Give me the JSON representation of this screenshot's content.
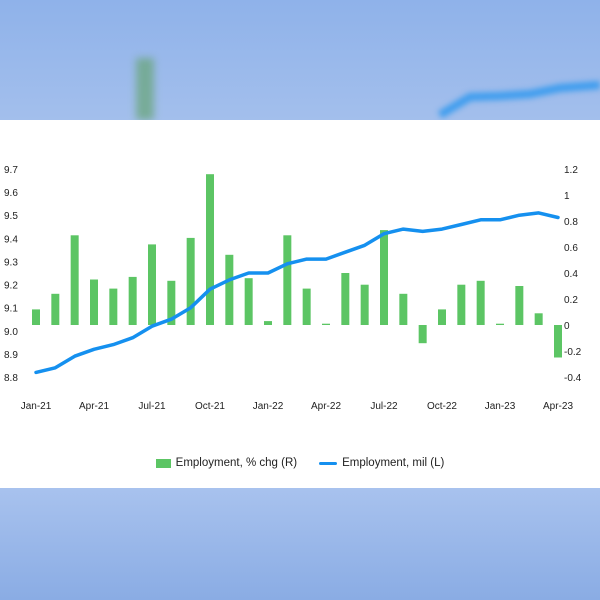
{
  "chart_data": {
    "type": "bar+line",
    "categories": [
      "Jan-21",
      "Feb-21",
      "Mar-21",
      "Apr-21",
      "May-21",
      "Jun-21",
      "Jul-21",
      "Aug-21",
      "Sep-21",
      "Oct-21",
      "Nov-21",
      "Dec-21",
      "Jan-22",
      "Feb-22",
      "Mar-22",
      "Apr-22",
      "May-22",
      "Jun-22",
      "Jul-22",
      "Aug-22",
      "Sep-22",
      "Oct-22",
      "Nov-22",
      "Dec-22",
      "Jan-23",
      "Feb-23",
      "Mar-23",
      "Apr-23"
    ],
    "x_tick_labels": [
      "Jan-21",
      "Apr-21",
      "Jul-21",
      "Oct-21",
      "Jan-22",
      "Apr-22",
      "Jul-22",
      "Oct-22",
      "Jan-23",
      "Apr-23"
    ],
    "series": [
      {
        "name": "Employment, % chg (R)",
        "type": "bar",
        "axis": "right",
        "color": "#5cc564",
        "values": [
          0.12,
          0.24,
          0.69,
          0.35,
          0.28,
          0.37,
          0.62,
          0.34,
          0.67,
          1.16,
          0.54,
          0.36,
          0.03,
          0.69,
          0.28,
          0.01,
          0.4,
          0.31,
          0.73,
          0.24,
          -0.14,
          0.12,
          0.31,
          0.34,
          0.01,
          0.3,
          0.09,
          -0.25
        ]
      },
      {
        "name": "Employment, mil (L)",
        "type": "line",
        "axis": "left",
        "color": "#1590ef",
        "values": [
          8.82,
          8.84,
          8.89,
          8.92,
          8.94,
          8.97,
          9.02,
          9.05,
          9.1,
          9.18,
          9.22,
          9.25,
          9.25,
          9.29,
          9.31,
          9.31,
          9.34,
          9.37,
          9.42,
          9.44,
          9.43,
          9.44,
          9.46,
          9.48,
          9.48,
          9.5,
          9.51,
          9.49
        ]
      }
    ],
    "y_left": {
      "ticks": [
        "8.8",
        "8.9",
        "9.0",
        "9.1",
        "9.2",
        "9.3",
        "9.4",
        "9.5",
        "9.6",
        "9.7"
      ],
      "range": [
        8.8,
        9.7
      ]
    },
    "y_right": {
      "ticks": [
        "-0.4",
        "-0.2",
        "0",
        "0.2",
        "0.4",
        "0.6",
        "0.8",
        "1",
        "1.2"
      ],
      "range": [
        -0.4,
        1.2
      ]
    },
    "grid": false,
    "legend_position": "bottom-center"
  },
  "legend": {
    "bar_label": "Employment, % chg (R)",
    "line_label": "Employment, mil (L)"
  }
}
